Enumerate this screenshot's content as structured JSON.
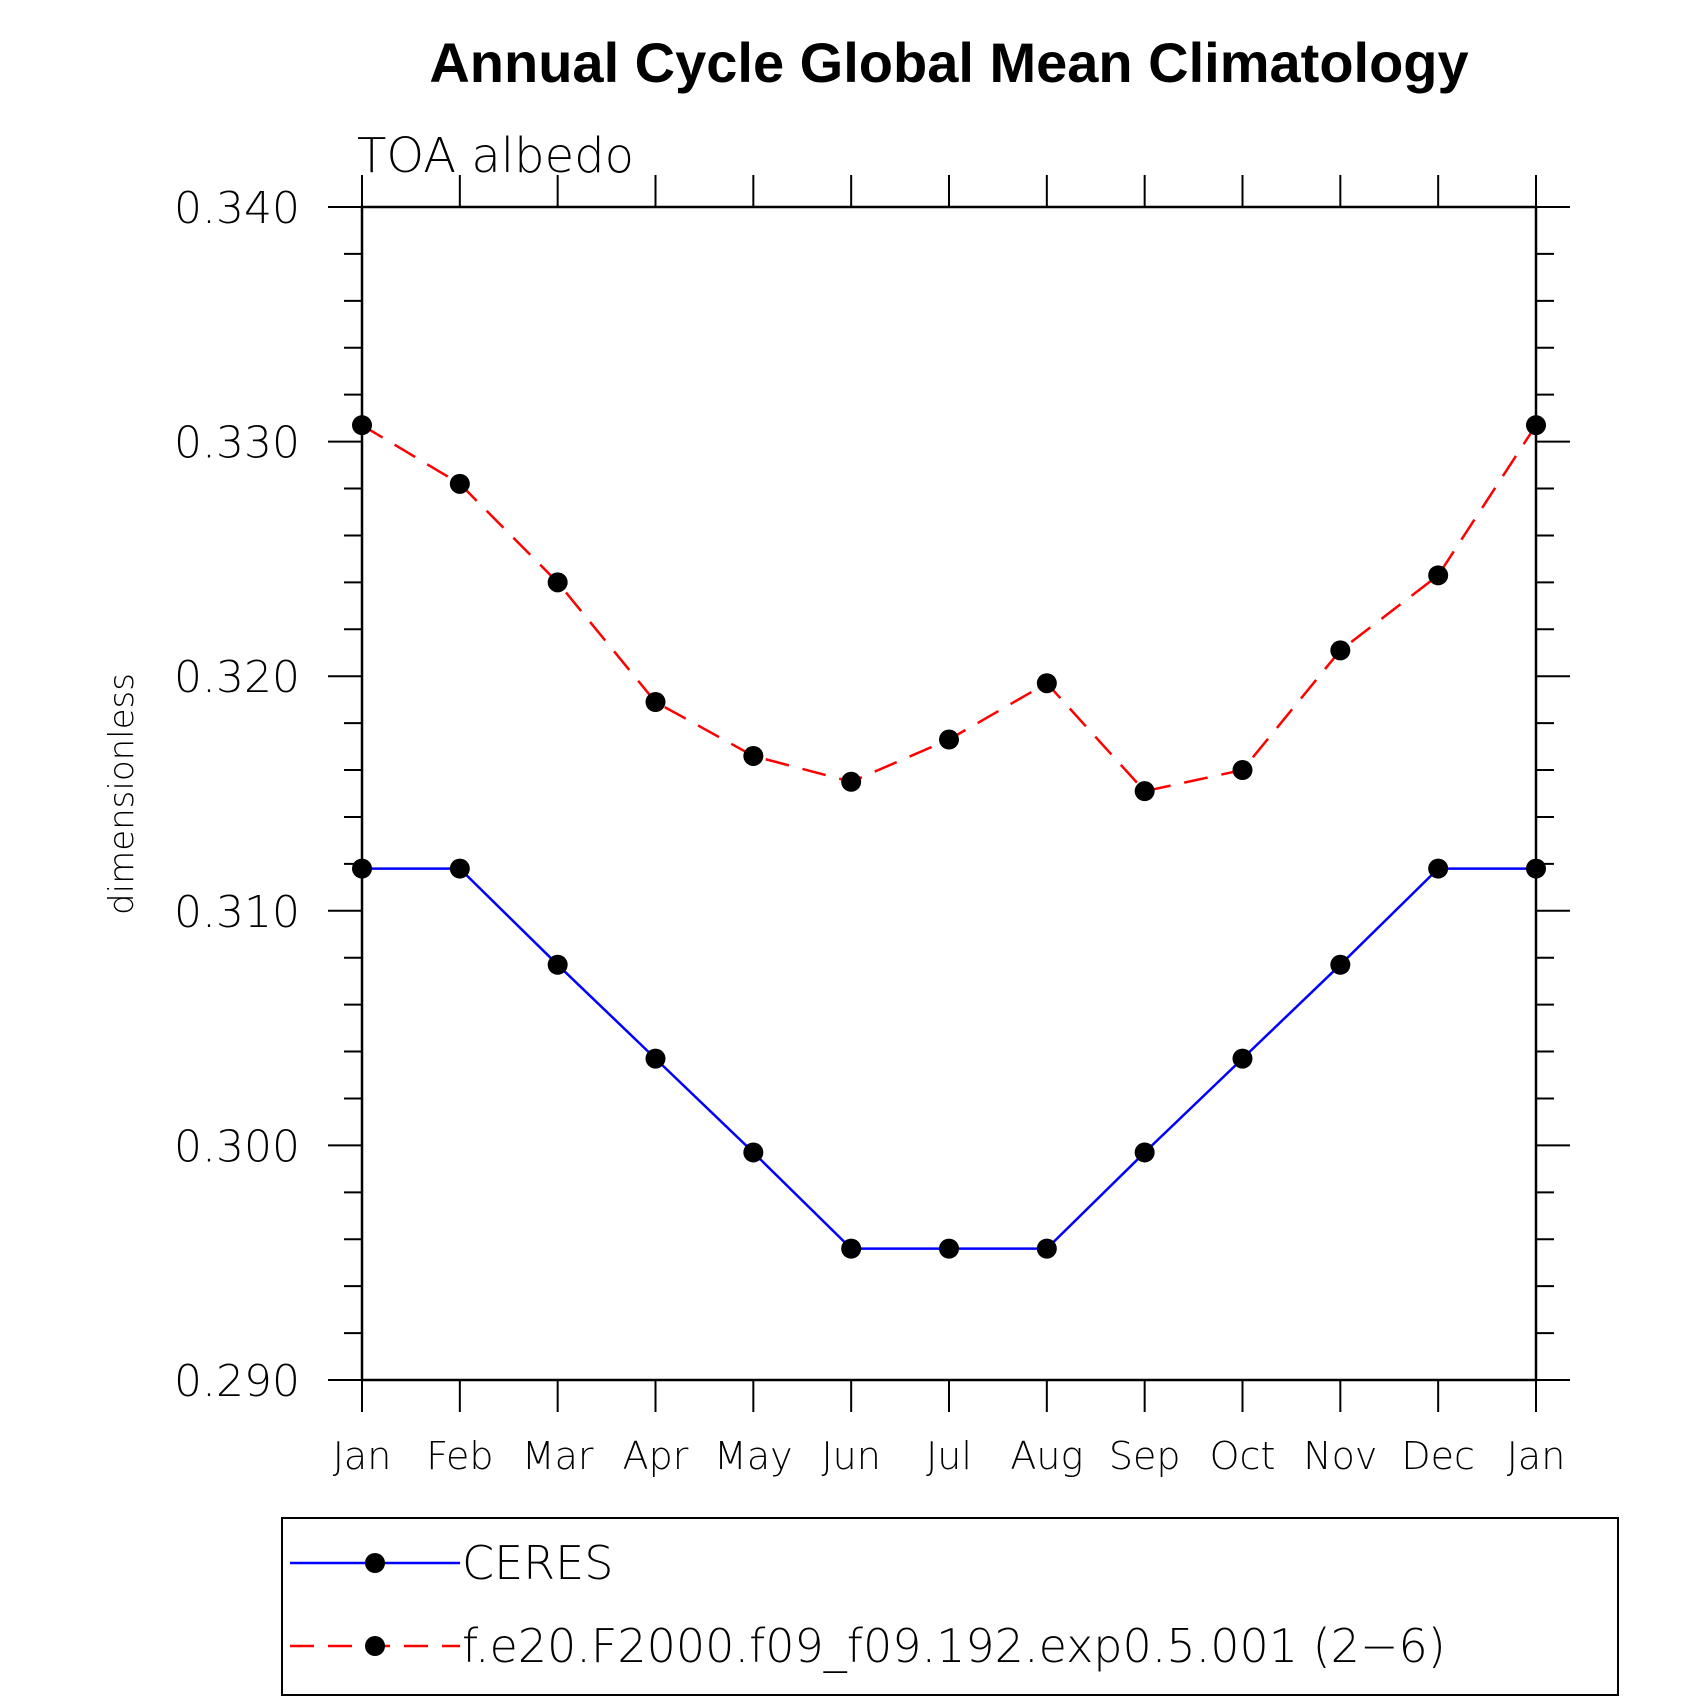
{
  "chart_data": {
    "type": "line",
    "title": "Annual Cycle Global Mean Climatology",
    "subtitle": "TOA albedo",
    "ylabel": "dimensionless",
    "xlabel": "",
    "categories": [
      "Jan",
      "Feb",
      "Mar",
      "Apr",
      "May",
      "Jun",
      "Jul",
      "Aug",
      "Sep",
      "Oct",
      "Nov",
      "Dec",
      "Jan"
    ],
    "ylim": [
      0.29,
      0.34
    ],
    "yticks": [
      "0.290",
      "0.300",
      "0.310",
      "0.320",
      "0.330",
      "0.340"
    ],
    "ytick_values": [
      0.29,
      0.3,
      0.31,
      0.32,
      0.33,
      0.34
    ],
    "yminor_step": 0.002,
    "series": [
      {
        "name": "CERES",
        "color": "#0000ff",
        "style": "solid",
        "marker": "filled-circle",
        "values": [
          0.3118,
          0.3118,
          0.3077,
          0.3037,
          0.2997,
          0.2956,
          0.2956,
          0.2956,
          0.2997,
          0.3037,
          0.3077,
          0.3118,
          0.3118
        ]
      },
      {
        "name": "f.e20.F2000.f09_f09.192.exp0.5.001 (2−6)",
        "color": "#ff0000",
        "style": "dashed",
        "marker": "filled-circle",
        "values": [
          0.3307,
          0.3282,
          0.324,
          0.3189,
          0.3166,
          0.3155,
          0.3173,
          0.3197,
          0.3151,
          0.316,
          0.3211,
          0.3243,
          0.3307
        ]
      }
    ],
    "legend_position": "bottom"
  }
}
